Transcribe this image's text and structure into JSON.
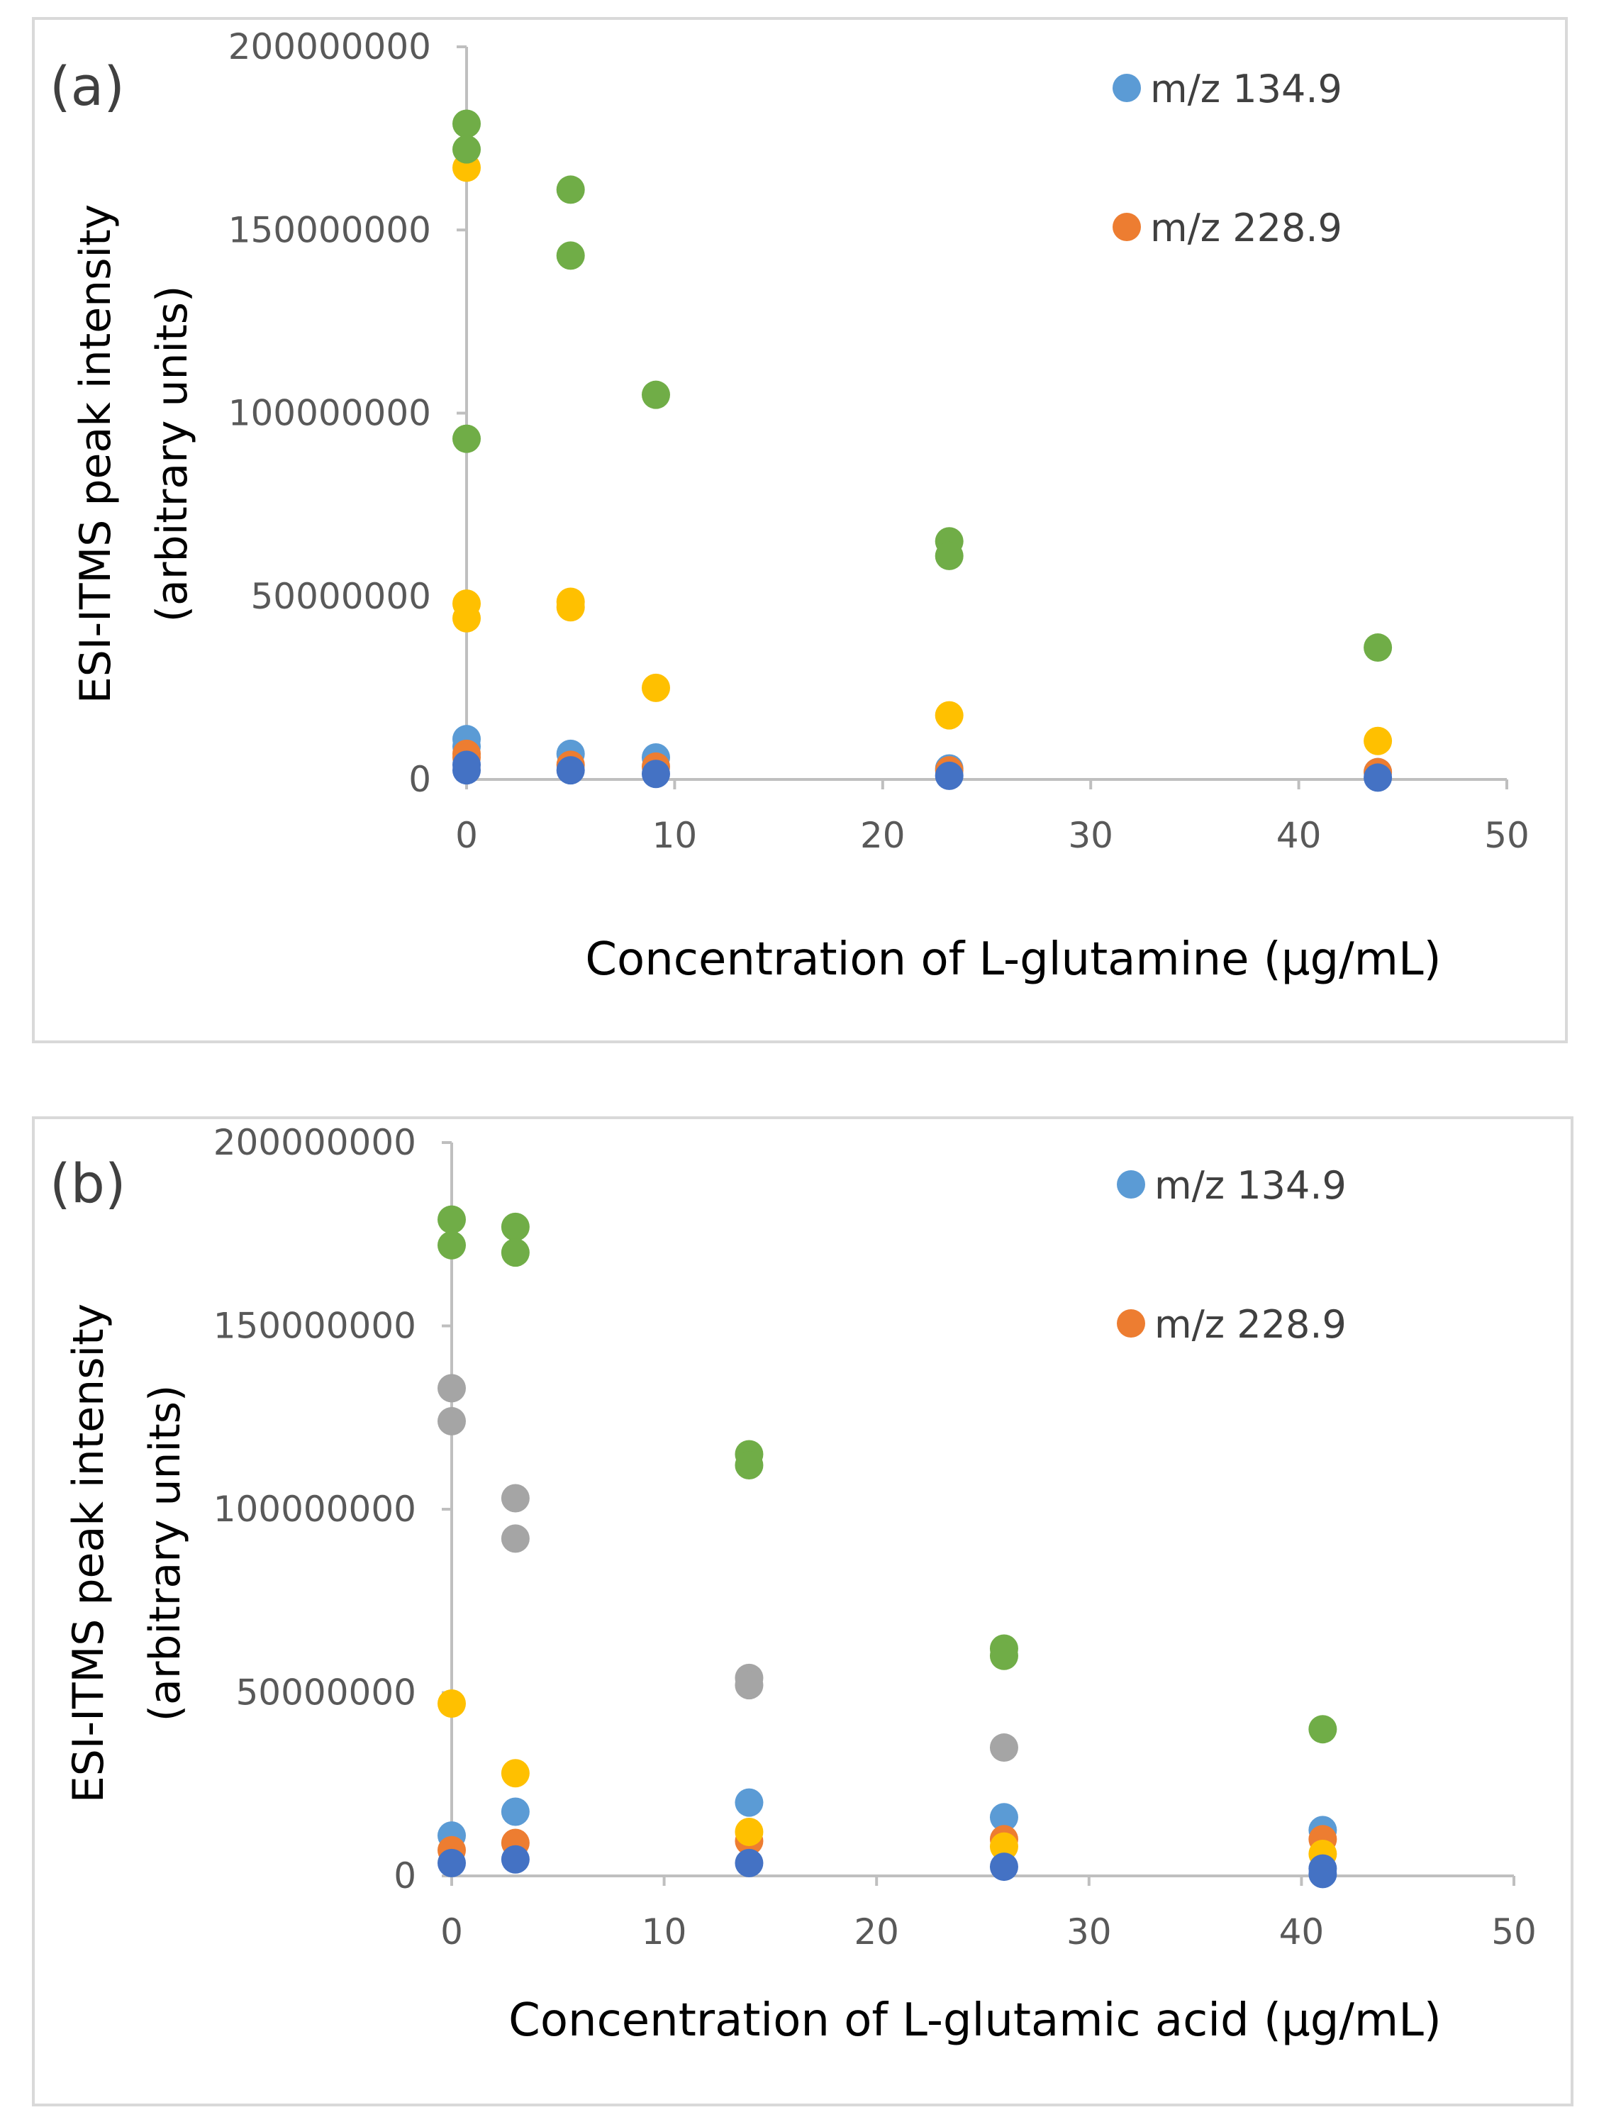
{
  "colors": {
    "m134": "#5B9BD5",
    "m228": "#ED7D31",
    "gray": "#A5A5A5",
    "yellow": "#FFC000",
    "green": "#70AD47",
    "blue": "#4472C4",
    "axis": "#BFBFBF",
    "frame": "#D9D9D9"
  },
  "chart_data": [
    {
      "type": "scatter",
      "panel_label": "(a)",
      "xlabel": "Concentration of L-glutamine  (μg/mL)",
      "ylabel_line1": "ESI-ITMS peak intensity",
      "ylabel_line2": "(arbitrary units)",
      "xlim": [
        0,
        50
      ],
      "ylim": [
        0,
        200000000
      ],
      "x_ticks": [
        "0",
        "10",
        "20",
        "30",
        "40",
        "50"
      ],
      "y_ticks": [
        "0",
        "50000000",
        "100000000",
        "150000000",
        "200000000"
      ],
      "legend": [
        "m/z 134.9",
        "m/z 228.9"
      ],
      "series": [
        {
          "name": "m/z 134.9",
          "color_key": "m134",
          "x": [
            0,
            0,
            5,
            9.1,
            23.2,
            43.8
          ],
          "y": [
            11000000,
            9000000,
            7000000,
            6000000,
            3000000,
            2000000
          ]
        },
        {
          "name": "m/z 228.9",
          "color_key": "m228",
          "x": [
            0,
            0,
            5,
            9.1,
            23.2,
            43.8
          ],
          "y": [
            7000000,
            6000000,
            4000000,
            3500000,
            2500000,
            2000000
          ]
        },
        {
          "name": "yellow",
          "color_key": "yellow",
          "x": [
            0,
            0,
            0,
            5,
            5,
            9.1,
            23.2,
            43.8
          ],
          "y": [
            167000000,
            48000000,
            44000000,
            48500000,
            47000000,
            25000000,
            17500000,
            10500000
          ]
        },
        {
          "name": "green",
          "color_key": "green",
          "x": [
            0,
            0,
            0,
            5,
            5,
            9.1,
            23.2,
            23.2,
            43.8
          ],
          "y": [
            179000000,
            172000000,
            93000000,
            161000000,
            143000000,
            105000000,
            65000000,
            61000000,
            36000000
          ]
        },
        {
          "name": "dark blue",
          "color_key": "blue",
          "x": [
            0,
            0,
            5,
            9.1,
            23.2,
            43.8
          ],
          "y": [
            4000000,
            2500000,
            2500000,
            1500000,
            1000000,
            500000
          ]
        }
      ]
    },
    {
      "type": "scatter",
      "panel_label": "(b)",
      "xlabel": "Concentration of L-glutamic acid  (μg/mL)",
      "ylabel_line1": "ESI-ITMS peak intensity",
      "ylabel_line2": "(arbitrary units)",
      "xlim": [
        0,
        50
      ],
      "ylim": [
        0,
        200000000
      ],
      "x_ticks": [
        "0",
        "10",
        "20",
        "30",
        "40",
        "50"
      ],
      "y_ticks": [
        "0",
        "50000000",
        "100000000",
        "150000000",
        "200000000"
      ],
      "legend": [
        "m/z 134.9",
        "m/z 228.9"
      ],
      "series": [
        {
          "name": "m/z 134.9",
          "color_key": "m134",
          "x": [
            0,
            3,
            14,
            26,
            41
          ],
          "y": [
            11000000,
            17500000,
            20000000,
            16000000,
            12500000
          ]
        },
        {
          "name": "m/z 228.9",
          "color_key": "m228",
          "x": [
            0,
            3,
            14,
            26,
            41
          ],
          "y": [
            7000000,
            9000000,
            9500000,
            10000000,
            10000000
          ]
        },
        {
          "name": "gray",
          "color_key": "gray",
          "x": [
            0,
            0,
            3,
            3,
            14,
            14,
            26
          ],
          "y": [
            133000000,
            124000000,
            103000000,
            92000000,
            54000000,
            52000000,
            35000000
          ]
        },
        {
          "name": "yellow",
          "color_key": "yellow",
          "x": [
            0,
            3,
            14,
            26,
            41
          ],
          "y": [
            47000000,
            28000000,
            12000000,
            8000000,
            6000000
          ]
        },
        {
          "name": "green",
          "color_key": "green",
          "x": [
            0,
            0,
            3,
            3,
            14,
            14,
            26,
            26,
            41
          ],
          "y": [
            179000000,
            172000000,
            177000000,
            170000000,
            115000000,
            112000000,
            62000000,
            60000000,
            40000000
          ]
        },
        {
          "name": "dark blue",
          "color_key": "blue",
          "x": [
            0,
            3,
            14,
            26,
            41,
            41
          ],
          "y": [
            3500000,
            4500000,
            3500000,
            2500000,
            2000000,
            500000
          ]
        }
      ]
    }
  ]
}
